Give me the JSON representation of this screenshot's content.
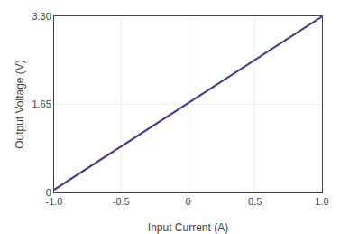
{
  "chart_data": {
    "type": "line",
    "x": [
      -1.0,
      1.0
    ],
    "values": [
      0.05,
      3.295
    ],
    "color": "#3a3d8f",
    "xlabel": "Input Current (A)",
    "ylabel": "Output Voltage (V)",
    "xlim": [
      -1.0,
      1.0
    ],
    "ylim": [
      0,
      3.3
    ],
    "xticks": [
      {
        "value": -1.0,
        "label": "-1.0"
      },
      -0.5,
      0,
      0.5,
      {
        "value": 1.0,
        "label": "1.0"
      }
    ],
    "yticks": [
      0,
      1.65,
      {
        "value": 3.3,
        "label": "3.30"
      }
    ],
    "grid": true
  }
}
